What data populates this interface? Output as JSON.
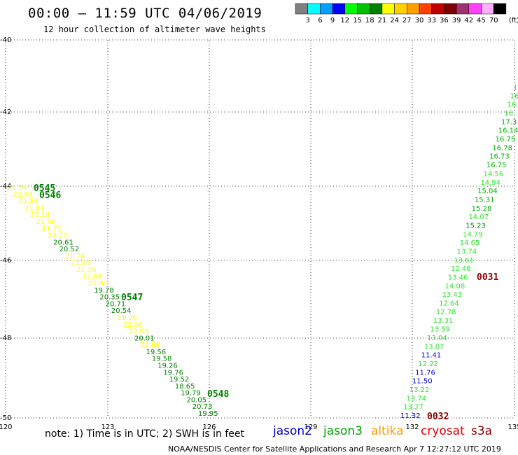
{
  "header": {
    "title": "00:00 – 11:59 UTC 04/06/2019",
    "subtitle": "12 hour collection of altimeter wave heights"
  },
  "legend": {
    "unit": "(ft)",
    "bins": [
      {
        "label": "3",
        "color": "#808080"
      },
      {
        "label": "6",
        "color": "#00ffff"
      },
      {
        "label": "9",
        "color": "#00a0ff"
      },
      {
        "label": "12",
        "color": "#0000ff"
      },
      {
        "label": "15",
        "color": "#00ff00"
      },
      {
        "label": "18",
        "color": "#00c000"
      },
      {
        "label": "21",
        "color": "#008000"
      },
      {
        "label": "24",
        "color": "#ffff00"
      },
      {
        "label": "27",
        "color": "#ffd000"
      },
      {
        "label": "30",
        "color": "#ffa000"
      },
      {
        "label": "33",
        "color": "#ff4000"
      },
      {
        "label": "36",
        "color": "#c00000"
      },
      {
        "label": "39",
        "color": "#800000"
      },
      {
        "label": "42",
        "color": "#a03070"
      },
      {
        "label": "45",
        "color": "#ff40ff"
      },
      {
        "label": "70",
        "color": "#ffb0ff"
      },
      {
        "label": "",
        "color": "#000000"
      }
    ]
  },
  "axes": {
    "lon_ticks": [
      "120",
      "123",
      "126",
      "129",
      "132",
      "135"
    ],
    "lat_ticks": [
      "-40",
      "-42",
      "-44",
      "-46",
      "-48",
      "-50"
    ]
  },
  "colors": {
    "yellow": "#ffff00",
    "green_dark": "#008000",
    "green_mid": "#00b000",
    "green_light": "#30e030",
    "blue": "#0000d0",
    "maroon": "#8b0000"
  },
  "tracks": {
    "west": [
      {
        "v": "21.54",
        "c": "yellow"
      },
      {
        "v": "22.48",
        "c": "yellow"
      },
      {
        "v": "21.88",
        "c": "yellow"
      },
      {
        "v": "21.91",
        "c": "yellow"
      },
      {
        "v": "22.18",
        "c": "yellow"
      },
      {
        "v": "21.40",
        "c": "yellow"
      },
      {
        "v": "21.71",
        "c": "yellow"
      },
      {
        "v": "21.73",
        "c": "yellow"
      },
      {
        "v": "20.61",
        "c": "green_dark"
      },
      {
        "v": "20.52",
        "c": "green_dark"
      },
      {
        "v": "21.74",
        "c": "yellow"
      },
      {
        "v": "21.99",
        "c": "yellow"
      },
      {
        "v": "21.26",
        "c": "yellow"
      },
      {
        "v": "22.64",
        "c": "yellow"
      },
      {
        "v": "21.91",
        "c": "yellow"
      },
      {
        "v": "19.78",
        "c": "green_dark"
      },
      {
        "v": "20.35",
        "c": "green_dark"
      },
      {
        "v": "20.71",
        "c": "green_dark"
      },
      {
        "v": "20.54",
        "c": "green_dark"
      },
      {
        "v": "21.96",
        "c": "yellow"
      },
      {
        "v": "22.06",
        "c": "yellow"
      },
      {
        "v": "22.64",
        "c": "yellow"
      },
      {
        "v": "20.01",
        "c": "green_dark"
      },
      {
        "v": "21.86",
        "c": "yellow"
      },
      {
        "v": "19.56",
        "c": "green_dark"
      },
      {
        "v": "19.58",
        "c": "green_dark"
      },
      {
        "v": "19.26",
        "c": "green_dark"
      },
      {
        "v": "19.76",
        "c": "green_dark"
      },
      {
        "v": "19.52",
        "c": "green_dark"
      },
      {
        "v": "18.65",
        "c": "green_dark"
      },
      {
        "v": "19.79",
        "c": "green_dark"
      },
      {
        "v": "20.05",
        "c": "green_dark"
      },
      {
        "v": "20.73",
        "c": "green_dark"
      },
      {
        "v": "19.95",
        "c": "green_dark"
      }
    ],
    "east": [
      {
        "v": "1",
        "c": "green_light"
      },
      {
        "v": "16",
        "c": "green_light"
      },
      {
        "v": "16.",
        "c": "green_light"
      },
      {
        "v": "16.",
        "c": "green_light"
      },
      {
        "v": "17.3",
        "c": "green_mid"
      },
      {
        "v": "16.14",
        "c": "green_mid"
      },
      {
        "v": "16.75",
        "c": "green_mid"
      },
      {
        "v": "16.78",
        "c": "green_mid"
      },
      {
        "v": "16.73",
        "c": "green_mid"
      },
      {
        "v": "16.75",
        "c": "green_mid"
      },
      {
        "v": "14.56",
        "c": "green_light"
      },
      {
        "v": "14.94",
        "c": "green_light"
      },
      {
        "v": "15.04",
        "c": "green_mid"
      },
      {
        "v": "15.31",
        "c": "green_mid"
      },
      {
        "v": "15.28",
        "c": "green_mid"
      },
      {
        "v": "14.07",
        "c": "green_light"
      },
      {
        "v": "15.23",
        "c": "green_dark"
      },
      {
        "v": "14.79",
        "c": "green_light"
      },
      {
        "v": "14.65",
        "c": "green_light"
      },
      {
        "v": "13.74",
        "c": "green_light"
      },
      {
        "v": "13.61",
        "c": "green_light"
      },
      {
        "v": "12.48",
        "c": "green_light"
      },
      {
        "v": "13.46",
        "c": "green_light"
      },
      {
        "v": "14.08",
        "c": "green_light"
      },
      {
        "v": "13.43",
        "c": "green_light"
      },
      {
        "v": "12.64",
        "c": "green_light"
      },
      {
        "v": "12.78",
        "c": "green_light"
      },
      {
        "v": "13.31",
        "c": "green_light"
      },
      {
        "v": "13.59",
        "c": "green_light"
      },
      {
        "v": "13.04",
        "c": "green_light"
      },
      {
        "v": "13.07",
        "c": "green_light"
      },
      {
        "v": "11.41",
        "c": "blue"
      },
      {
        "v": "12.22",
        "c": "green_light"
      },
      {
        "v": "11.76",
        "c": "blue"
      },
      {
        "v": "11.50",
        "c": "blue"
      },
      {
        "v": "13.22",
        "c": "green_light"
      },
      {
        "v": "13.74",
        "c": "green_light"
      },
      {
        "v": "13.27",
        "c": "green_light"
      },
      {
        "v": "11.32",
        "c": "blue"
      }
    ]
  },
  "time_labels": [
    {
      "t": "0545",
      "c": "green_dark"
    },
    {
      "t": "0546",
      "c": "green_dark"
    },
    {
      "t": "0547",
      "c": "green_dark"
    },
    {
      "t": "0548",
      "c": "green_dark"
    },
    {
      "t": "0031",
      "c": "maroon"
    },
    {
      "t": "0032",
      "c": "maroon"
    }
  ],
  "note": "note: 1) Time is in UTC; 2) SWH is in feet",
  "satellites": [
    {
      "name": "jason2",
      "color": "#0000d0"
    },
    {
      "name": "jason3",
      "color": "#00a000"
    },
    {
      "name": "altika",
      "color": "#ff9900"
    },
    {
      "name": "cryosat",
      "color": "#e00000"
    },
    {
      "name": "s3a",
      "color": "#8b0000"
    }
  ],
  "credit": "NOAA/NESDIS Center for Satellite Applications and Research   Apr  7 12:27:12 UTC 2019"
}
